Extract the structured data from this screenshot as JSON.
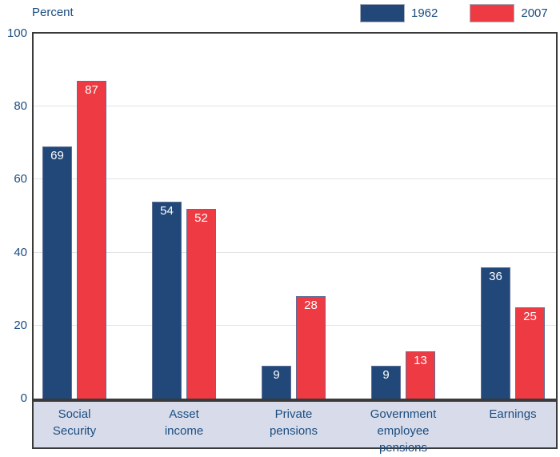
{
  "header": {
    "y_axis_title": "Percent"
  },
  "legend": [
    {
      "label": "1962",
      "color": "#214879"
    },
    {
      "label": "2007",
      "color": "#EE3A43"
    }
  ],
  "chart_data": {
    "type": "bar",
    "title": "",
    "ylabel": "Percent",
    "xlabel": "",
    "ylim": [
      0,
      100
    ],
    "yticks": [
      0,
      20,
      40,
      60,
      80,
      100
    ],
    "grid": true,
    "legend_position": "top-right",
    "categories": [
      "Social Security",
      "Asset income",
      "Private pensions",
      "Government employee pensions",
      "Earnings"
    ],
    "category_label_lines": [
      [
        "Social",
        "Security"
      ],
      [
        "Asset",
        "income"
      ],
      [
        "Private",
        "pensions"
      ],
      [
        "Government",
        "employee",
        "pensions"
      ],
      [
        "Earnings"
      ]
    ],
    "series": [
      {
        "name": "1962",
        "color": "#214879",
        "values": [
          69,
          54,
          9,
          9,
          36
        ]
      },
      {
        "name": "2007",
        "color": "#EE3A43",
        "values": [
          87,
          52,
          28,
          13,
          25
        ]
      }
    ]
  },
  "colors": {
    "text": "#1A4C80",
    "bar_value_label": "#ffffff",
    "bar_border": "#5E6F96",
    "plot_border": "#3a3a3a",
    "gridline": "#e3e3e3",
    "category_band_bg": "#D8DCEA"
  }
}
